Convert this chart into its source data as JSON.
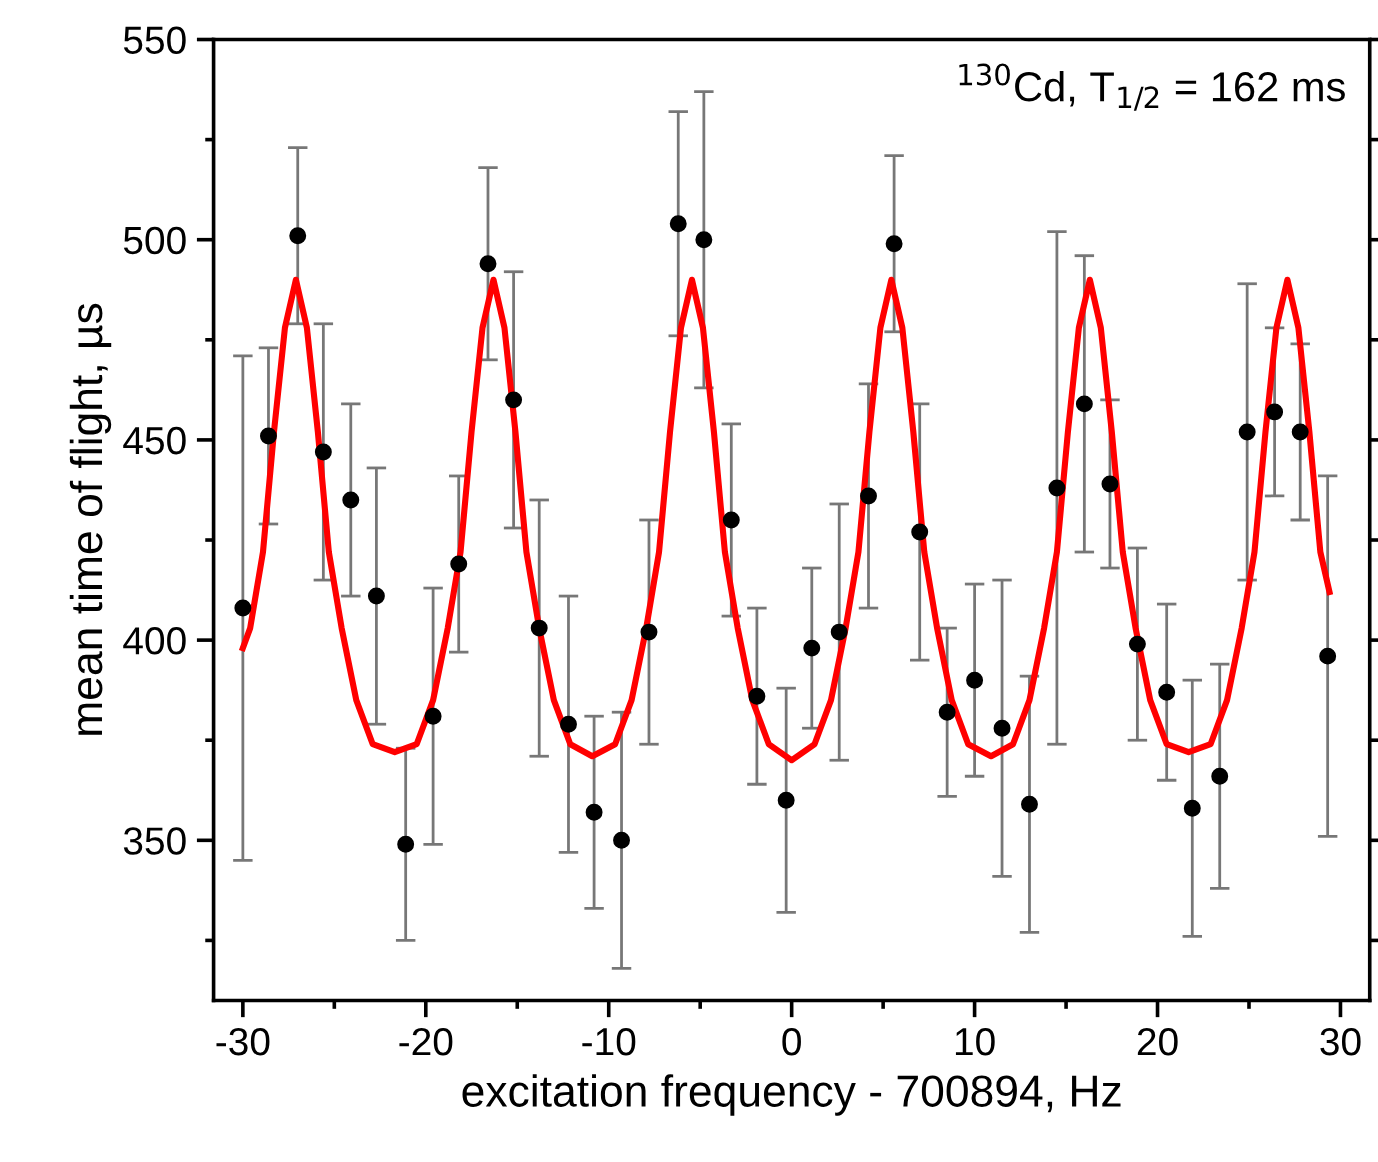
{
  "chart_data": {
    "type": "scatter",
    "xlabel": "excitation frequency - 700894, Hz",
    "ylabel": "mean time of flight, µs",
    "annotations": [
      "$^{130}$Cd, T$_{1/2}$ = 162 ms"
    ],
    "xlim": [
      -31.6,
      31.6
    ],
    "ylim": [
      310,
      550
    ],
    "xticks": [
      -30,
      -20,
      -10,
      0,
      10,
      20,
      30
    ],
    "yticks": [
      350,
      400,
      450,
      500,
      550
    ],
    "grid": false,
    "legend": false,
    "series": [
      {
        "color": "#000000",
        "marker": "circle",
        "x": [
          -30.0,
          -28.6,
          -27.0,
          -25.6,
          -24.1,
          -22.7,
          -21.1,
          -19.6,
          -18.2,
          -16.6,
          -15.2,
          -13.8,
          -12.2,
          -10.8,
          -9.3,
          -7.8,
          -6.2,
          -4.8,
          -3.3,
          -1.9,
          -0.3,
          1.1,
          2.6,
          4.2,
          5.6,
          7.0,
          8.5,
          10.0,
          11.5,
          13.0,
          14.5,
          16.0,
          17.4,
          18.9,
          20.5,
          21.9,
          23.4,
          24.9,
          26.4,
          27.8,
          29.3
        ],
        "values": [
          408,
          451,
          501,
          447,
          435,
          411,
          349,
          381,
          419,
          494,
          460,
          403,
          379,
          357,
          350,
          402,
          504,
          500,
          430,
          386,
          360,
          398,
          402,
          436,
          499,
          427,
          382,
          390,
          378,
          359,
          438,
          459,
          439,
          399,
          387,
          358,
          366,
          452,
          457,
          452,
          396
        ],
        "errors": [
          63,
          22,
          22,
          32,
          24,
          32,
          24,
          32,
          22,
          24,
          32,
          32,
          32,
          24,
          32,
          28,
          28,
          37,
          24,
          22,
          28,
          20,
          32,
          28,
          22,
          32,
          21,
          24,
          37,
          32,
          64,
          37,
          21,
          24,
          22,
          32,
          28,
          37,
          21,
          22,
          45
        ]
      },
      {
        "type": "line",
        "color": "#ff0000",
        "marker": "none",
        "line_style": "solid",
        "x": [
          -30.0,
          -29.6,
          -28.9,
          -28.3,
          -27.7,
          -27.1,
          -26.5,
          -25.9,
          -25.3,
          -24.6,
          -23.8,
          -22.9,
          -21.7,
          -20.5,
          -19.6,
          -18.8,
          -18.1,
          -17.5,
          -16.9,
          -16.3,
          -15.7,
          -15.1,
          -14.5,
          -13.8,
          -13.0,
          -12.1,
          -10.9,
          -9.65,
          -8.75,
          -7.95,
          -7.25,
          -6.65,
          -6.05,
          -5.45,
          -4.85,
          -4.25,
          -3.65,
          -2.95,
          -2.15,
          -1.25,
          0,
          1.25,
          2.15,
          2.95,
          3.65,
          4.25,
          4.85,
          5.45,
          6.05,
          6.65,
          7.25,
          7.95,
          8.75,
          9.65,
          10.9,
          12.1,
          13.0,
          13.8,
          14.5,
          15.1,
          15.7,
          16.3,
          16.9,
          17.5,
          18.1,
          18.8,
          19.6,
          20.5,
          21.7,
          22.9,
          23.8,
          24.6,
          25.3,
          25.9,
          26.5,
          27.1,
          27.7,
          28.3,
          28.9,
          29.4
        ],
        "values": [
          398,
          403,
          422,
          452,
          478,
          490,
          478,
          452,
          422,
          403,
          385,
          374,
          372,
          374,
          385,
          403,
          422,
          452,
          478,
          490,
          478,
          452,
          422,
          403,
          385,
          374,
          371,
          374,
          385,
          403,
          422,
          452,
          478,
          490,
          478,
          452,
          422,
          403,
          385,
          374,
          370,
          374,
          385,
          403,
          422,
          452,
          478,
          490,
          478,
          452,
          422,
          403,
          385,
          374,
          371,
          374,
          385,
          403,
          422,
          452,
          478,
          490,
          478,
          452,
          422,
          403,
          385,
          374,
          372,
          374,
          385,
          403,
          422,
          452,
          478,
          490,
          478,
          452,
          422,
          412
        ]
      }
    ]
  }
}
